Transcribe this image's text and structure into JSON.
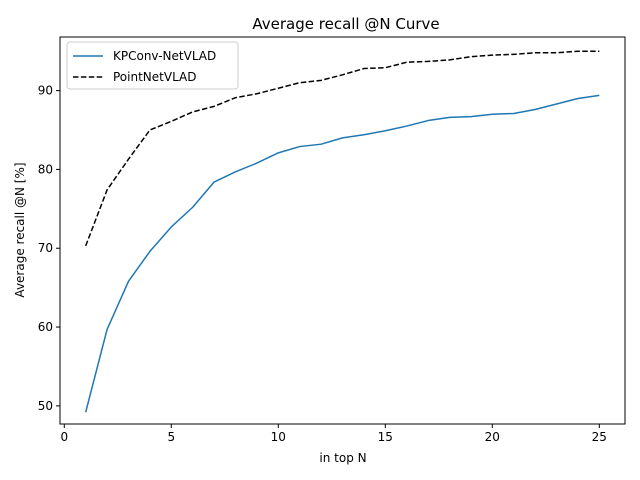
{
  "chart_data": {
    "type": "line",
    "title": "Average recall @N Curve",
    "xlabel": "in top N",
    "ylabel": "Average recall @N [%]",
    "xlim": [
      -0.2,
      26.2
    ],
    "ylim": [
      47.7,
      96.8
    ],
    "xticks": [
      0,
      5,
      10,
      15,
      20,
      25
    ],
    "yticks": [
      50,
      60,
      70,
      80,
      90
    ],
    "grid": false,
    "legend_position": "top-left",
    "x": [
      1,
      2,
      3,
      4,
      5,
      6,
      7,
      8,
      9,
      10,
      11,
      12,
      13,
      14,
      15,
      16,
      17,
      18,
      19,
      20,
      21,
      22,
      23,
      24,
      25
    ],
    "series": [
      {
        "name": "KPConv-NetVLAD",
        "color": "#1f77b4",
        "linestyle": "solid",
        "values": [
          49.2,
          59.7,
          65.8,
          69.6,
          72.7,
          75.2,
          78.4,
          79.7,
          80.8,
          82.1,
          82.9,
          83.2,
          84.0,
          84.4,
          84.9,
          85.5,
          86.2,
          86.6,
          86.7,
          87.0,
          87.1,
          87.6,
          88.3,
          89.0,
          89.4
        ]
      },
      {
        "name": "PointNetVLAD",
        "color": "#000000",
        "linestyle": "dashed",
        "values": [
          70.3,
          77.4,
          81.3,
          85.0,
          86.1,
          87.3,
          88.0,
          89.1,
          89.6,
          90.3,
          91.0,
          91.3,
          92.0,
          92.8,
          92.9,
          93.6,
          93.7,
          93.9,
          94.3,
          94.5,
          94.6,
          94.8,
          94.8,
          95.0,
          95.0
        ]
      }
    ]
  }
}
